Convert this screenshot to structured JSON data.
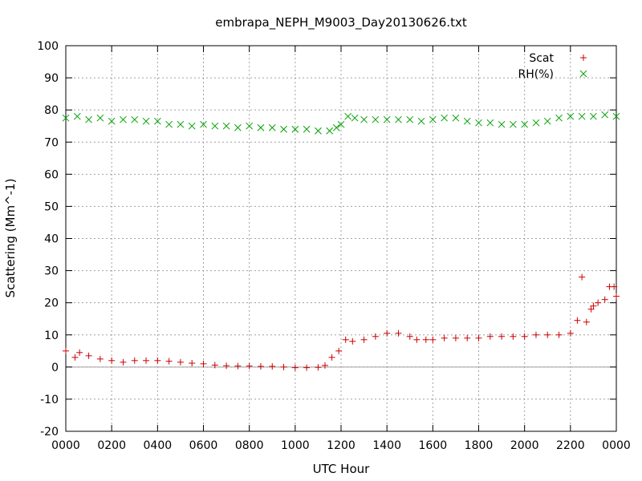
{
  "chart_data": {
    "type": "scatter",
    "title": "embrapa_NEPH_M9003_Day20130626.txt",
    "xlabel": "UTC Hour",
    "ylabel": "Scattering (Mm^-1)",
    "xlim": [
      0,
      24
    ],
    "ylim": [
      -20,
      100
    ],
    "x_tick_labels": [
      "0000",
      "0200",
      "0400",
      "0600",
      "0800",
      "1000",
      "1200",
      "1400",
      "1600",
      "1800",
      "2000",
      "2200",
      "0000"
    ],
    "y_ticks": [
      -20,
      -10,
      0,
      10,
      20,
      30,
      40,
      50,
      60,
      70,
      80,
      90,
      100
    ],
    "grid": true,
    "zero_line": true,
    "legend_position": "top-right",
    "series": [
      {
        "name": "Scat",
        "marker": "plus",
        "color": "#cc0000",
        "points": [
          [
            0.0,
            5.0
          ],
          [
            0.4,
            3.0
          ],
          [
            0.6,
            4.5
          ],
          [
            1.0,
            3.5
          ],
          [
            1.5,
            2.5
          ],
          [
            2.0,
            2.0
          ],
          [
            2.5,
            1.5
          ],
          [
            3.0,
            2.0
          ],
          [
            3.5,
            2.0
          ],
          [
            4.0,
            2.0
          ],
          [
            4.5,
            1.8
          ],
          [
            5.0,
            1.5
          ],
          [
            5.5,
            1.2
          ],
          [
            6.0,
            1.0
          ],
          [
            6.5,
            0.6
          ],
          [
            7.0,
            0.4
          ],
          [
            7.5,
            0.3
          ],
          [
            8.0,
            0.3
          ],
          [
            8.5,
            0.2
          ],
          [
            9.0,
            0.2
          ],
          [
            9.5,
            0.0
          ],
          [
            10.0,
            -0.2
          ],
          [
            10.5,
            -0.2
          ],
          [
            11.0,
            -0.1
          ],
          [
            11.3,
            0.5
          ],
          [
            11.6,
            3.0
          ],
          [
            11.9,
            5.0
          ],
          [
            12.2,
            8.5
          ],
          [
            12.5,
            8.0
          ],
          [
            13.0,
            8.5
          ],
          [
            13.5,
            9.5
          ],
          [
            14.0,
            10.5
          ],
          [
            14.5,
            10.5
          ],
          [
            15.0,
            9.5
          ],
          [
            15.3,
            8.5
          ],
          [
            15.7,
            8.5
          ],
          [
            16.0,
            8.5
          ],
          [
            16.5,
            9.0
          ],
          [
            17.0,
            9.0
          ],
          [
            17.5,
            9.0
          ],
          [
            18.0,
            9.0
          ],
          [
            18.5,
            9.5
          ],
          [
            19.0,
            9.5
          ],
          [
            19.5,
            9.5
          ],
          [
            20.0,
            9.5
          ],
          [
            20.5,
            10.0
          ],
          [
            21.0,
            10.0
          ],
          [
            21.5,
            10.0
          ],
          [
            22.0,
            10.5
          ],
          [
            22.3,
            14.5
          ],
          [
            22.5,
            28.0
          ],
          [
            22.7,
            14.0
          ],
          [
            22.9,
            18.0
          ],
          [
            23.0,
            19.0
          ],
          [
            23.2,
            20.0
          ],
          [
            23.5,
            21.0
          ],
          [
            23.7,
            25.0
          ],
          [
            23.9,
            25.0
          ],
          [
            24.0,
            22.0
          ]
        ]
      },
      {
        "name": "RH(%)",
        "marker": "cross",
        "color": "#00a000",
        "points": [
          [
            0.0,
            77.5
          ],
          [
            0.5,
            78.0
          ],
          [
            1.0,
            77.0
          ],
          [
            1.5,
            77.5
          ],
          [
            2.0,
            76.5
          ],
          [
            2.5,
            77.0
          ],
          [
            3.0,
            77.0
          ],
          [
            3.5,
            76.5
          ],
          [
            4.0,
            76.5
          ],
          [
            4.5,
            75.5
          ],
          [
            5.0,
            75.5
          ],
          [
            5.5,
            75.0
          ],
          [
            6.0,
            75.5
          ],
          [
            6.5,
            75.0
          ],
          [
            7.0,
            75.0
          ],
          [
            7.5,
            74.5
          ],
          [
            8.0,
            75.0
          ],
          [
            8.5,
            74.5
          ],
          [
            9.0,
            74.5
          ],
          [
            9.5,
            74.0
          ],
          [
            10.0,
            74.0
          ],
          [
            10.5,
            74.0
          ],
          [
            11.0,
            73.5
          ],
          [
            11.5,
            73.5
          ],
          [
            11.8,
            74.5
          ],
          [
            12.0,
            75.5
          ],
          [
            12.3,
            78.0
          ],
          [
            12.6,
            77.5
          ],
          [
            13.0,
            77.0
          ],
          [
            13.5,
            77.0
          ],
          [
            14.0,
            77.0
          ],
          [
            14.5,
            77.0
          ],
          [
            15.0,
            77.0
          ],
          [
            15.5,
            76.5
          ],
          [
            16.0,
            77.0
          ],
          [
            16.5,
            77.5
          ],
          [
            17.0,
            77.5
          ],
          [
            17.5,
            76.5
          ],
          [
            18.0,
            76.0
          ],
          [
            18.5,
            76.0
          ],
          [
            19.0,
            75.5
          ],
          [
            19.5,
            75.5
          ],
          [
            20.0,
            75.5
          ],
          [
            20.5,
            76.0
          ],
          [
            21.0,
            76.5
          ],
          [
            21.5,
            77.5
          ],
          [
            22.0,
            78.0
          ],
          [
            22.5,
            78.0
          ],
          [
            23.0,
            78.0
          ],
          [
            23.5,
            78.5
          ],
          [
            24.0,
            78.0
          ]
        ]
      }
    ]
  }
}
